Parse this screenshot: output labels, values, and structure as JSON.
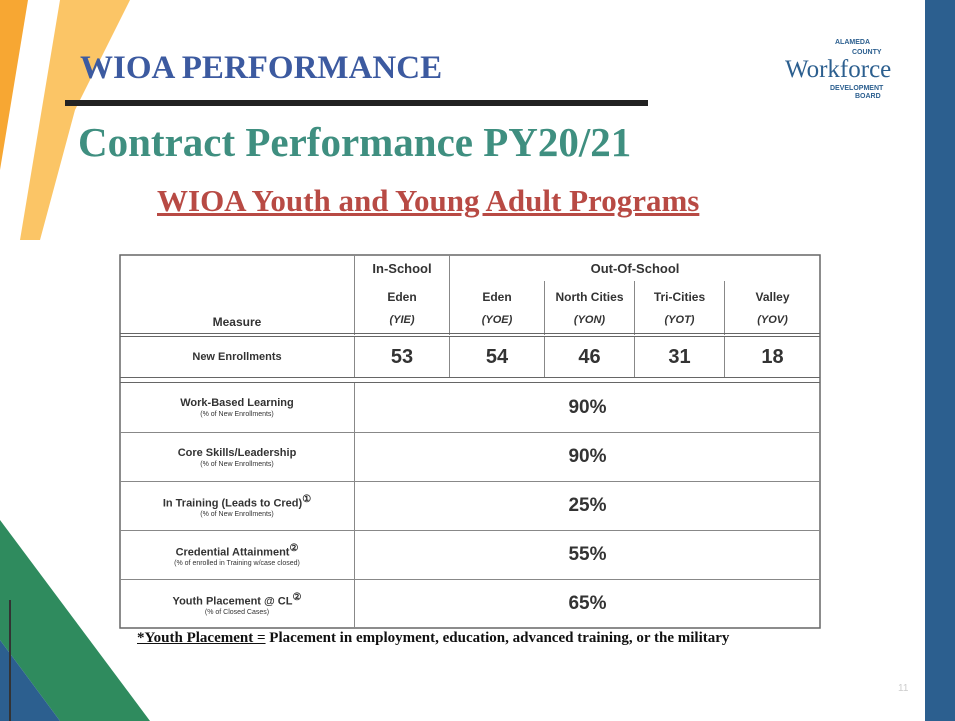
{
  "header": {
    "title": "WIOA PERFORMANCE",
    "subtitle": "Contract Performance PY20/21",
    "heading": "WIOA Youth and Young Adult Programs"
  },
  "logo": {
    "top": "ALAMEDA",
    "county": "COUNTY",
    "name": "Workforce",
    "bottom1": "DEVELOPMENT",
    "bottom2": "BOARD"
  },
  "table": {
    "measure_header": "Measure",
    "groups": [
      "In-School",
      "Out-Of-School"
    ],
    "columns": [
      {
        "name": "Eden",
        "code": "(YIE)"
      },
      {
        "name": "Eden",
        "code": "(YOE)"
      },
      {
        "name": "North Cities",
        "code": "(YON)"
      },
      {
        "name": "Tri-Cities",
        "code": "(YOT)"
      },
      {
        "name": "Valley",
        "code": "(YOV)"
      }
    ],
    "enrollments": {
      "label": "New Enrollments",
      "values": [
        "53",
        "54",
        "46",
        "31",
        "18"
      ]
    },
    "rows": [
      {
        "label": "Work-Based Learning",
        "note": "(% of New Enrollments)",
        "value": "90%"
      },
      {
        "label": "Core Skills/Leadership",
        "note": "(% of New Enrollments)",
        "value": "90%"
      },
      {
        "label": "In Training (Leads to Cred)",
        "mark": "①",
        "note": "(% of New Enrollments)",
        "value": "25%"
      },
      {
        "label": "Credential Attainment",
        "mark": "②",
        "note": "(% of enrolled in Training w/case closed)",
        "value": "55%"
      },
      {
        "label": "Youth Placement @ CL",
        "mark": "②",
        "note": "(% of Closed Cases)",
        "value": "65%"
      }
    ]
  },
  "footnote": {
    "term": "*Youth Placement =",
    "text": " Placement in employment, education, advanced training, or the military"
  },
  "page_number": "11"
}
